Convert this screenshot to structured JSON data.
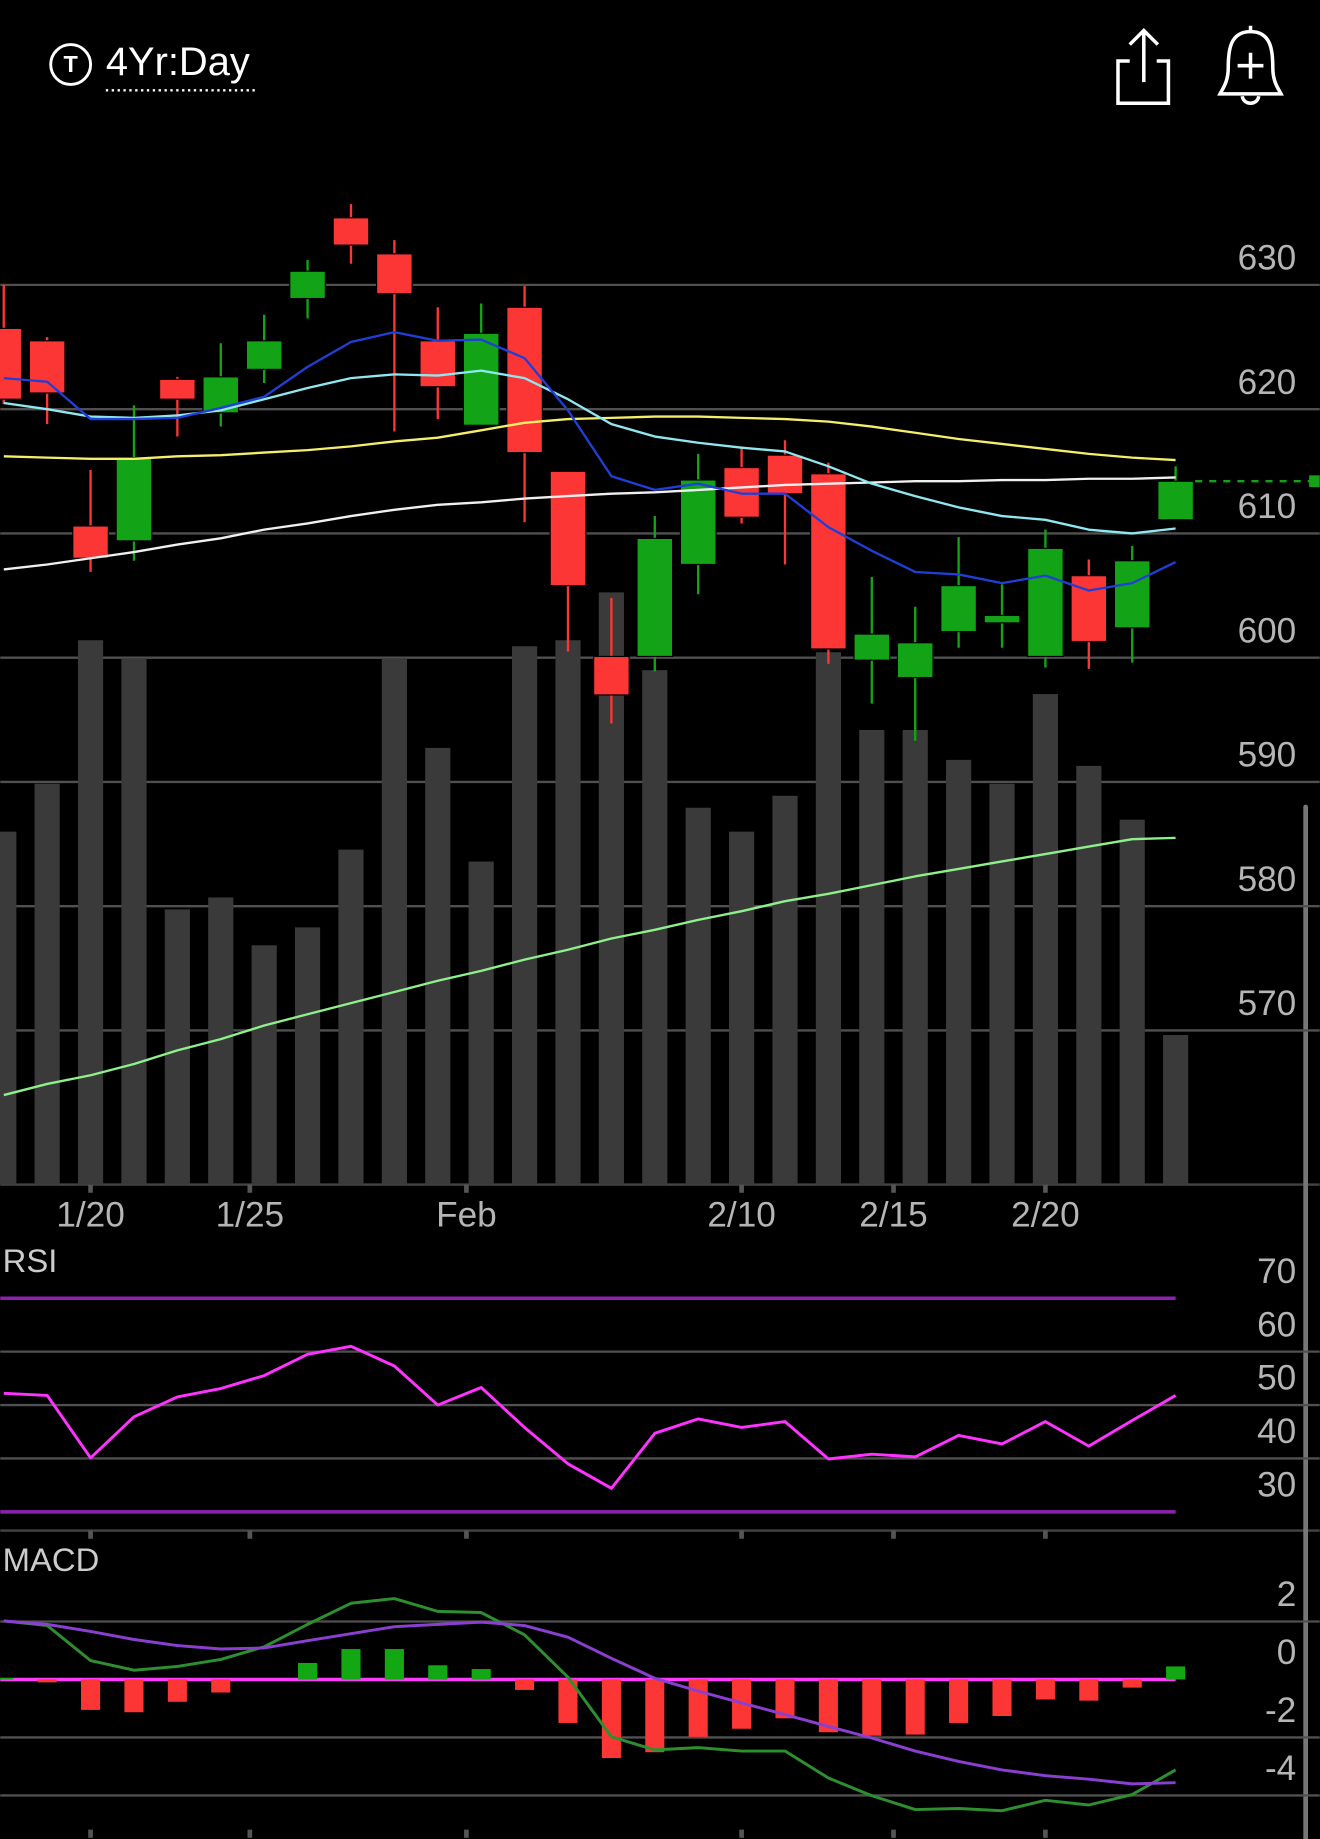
{
  "header": {
    "icon": "T",
    "title": "4Yr:Day"
  },
  "chart_data": [
    {
      "type": "candlestick",
      "categories": [
        null,
        null,
        null,
        null,
        null,
        null,
        null,
        null,
        null,
        null,
        null,
        null,
        null,
        null,
        null,
        null,
        null,
        null,
        null,
        null,
        null,
        null,
        null,
        null,
        null,
        null,
        null,
        null
      ],
      "open": [
        626.5,
        625.5,
        610.6,
        609.4,
        622.4,
        619.7,
        623.2,
        628.9,
        635.4,
        632.5,
        625.5,
        618.7,
        628.2,
        615.0,
        600.1,
        600.1,
        607.5,
        615.3,
        616.3,
        614.8,
        599.8,
        598.4,
        602.1,
        602.8,
        600.1,
        606.6,
        602.4,
        611.1
      ],
      "high": [
        630.0,
        625.8,
        615.1,
        620.3,
        622.6,
        625.3,
        627.6,
        632.0,
        636.5,
        633.6,
        628.2,
        628.5,
        629.9,
        615.0,
        604.8,
        611.4,
        616.4,
        617.0,
        617.5,
        615.7,
        606.5,
        604.1,
        609.7,
        605.9,
        610.3,
        607.9,
        609.0,
        615.4
      ],
      "low": [
        620.4,
        618.8,
        606.9,
        607.8,
        617.8,
        618.6,
        622.1,
        627.3,
        631.7,
        618.2,
        619.2,
        618.7,
        610.9,
        600.5,
        594.7,
        598.9,
        605.1,
        610.8,
        607.5,
        599.5,
        596.3,
        593.3,
        600.8,
        600.8,
        599.2,
        599.1,
        599.6,
        611.1
      ],
      "close": [
        620.8,
        621.3,
        608.0,
        616.1,
        620.8,
        622.6,
        625.5,
        631.1,
        633.2,
        629.3,
        621.8,
        626.1,
        616.5,
        605.8,
        597.0,
        609.6,
        614.3,
        611.3,
        613.2,
        600.7,
        601.9,
        601.2,
        605.8,
        603.4,
        608.8,
        601.3,
        607.8,
        614.2
      ],
      "up_color": "#12a316",
      "down_color": "#fc3535",
      "volume": {
        "values": [
          59,
          67,
          91,
          88,
          46,
          48,
          40,
          43,
          56,
          88,
          73,
          54,
          90,
          91,
          99,
          86,
          63,
          59,
          65,
          89,
          76,
          76,
          71,
          67,
          82,
          70,
          61,
          25
        ],
        "ylim": [
          0,
          100
        ],
        "color": "#3a3a3a"
      },
      "series": [
        {
          "color": "#8ef08a",
          "values": [
            564.8,
            565.7,
            566.4,
            567.3,
            568.4,
            569.3,
            570.4,
            571.3,
            572.2,
            573.1,
            574.0,
            574.8,
            575.7,
            576.5,
            577.4,
            578.1,
            578.9,
            579.6,
            580.4,
            581.0,
            581.7,
            582.4,
            583.0,
            583.6,
            584.2,
            584.8,
            585.4,
            585.5
          ]
        },
        {
          "color": "#f0f0f0",
          "values": [
            607.1,
            607.5,
            608.0,
            608.5,
            609.1,
            609.6,
            610.3,
            610.8,
            611.4,
            611.9,
            612.3,
            612.5,
            612.8,
            613.0,
            613.2,
            613.3,
            613.5,
            613.7,
            613.9,
            614.0,
            614.1,
            614.2,
            614.2,
            614.3,
            614.3,
            614.4,
            614.4,
            614.5
          ]
        },
        {
          "color": "#f5ee6a",
          "values": [
            616.2,
            616.1,
            616.0,
            616.0,
            616.2,
            616.3,
            616.5,
            616.7,
            617.0,
            617.4,
            617.7,
            618.3,
            618.9,
            619.2,
            619.3,
            619.4,
            619.4,
            619.3,
            619.2,
            619.0,
            618.6,
            618.1,
            617.6,
            617.2,
            616.8,
            616.4,
            616.1,
            615.9
          ]
        },
        {
          "color": "#8fe8f0",
          "values": [
            620.5,
            620.0,
            619.4,
            619.3,
            619.5,
            619.9,
            620.8,
            621.7,
            622.5,
            622.8,
            622.7,
            623.1,
            622.5,
            620.8,
            618.8,
            617.8,
            617.3,
            616.9,
            616.6,
            615.4,
            614.0,
            613.0,
            612.1,
            611.4,
            611.1,
            610.3,
            610.0,
            610.4
          ]
        },
        {
          "color": "#1f3fd6",
          "values": [
            622.5,
            622.2,
            619.2,
            619.2,
            619.3,
            620.1,
            621.0,
            623.4,
            625.4,
            626.2,
            625.5,
            625.6,
            624.1,
            619.9,
            614.6,
            613.5,
            614.0,
            613.2,
            613.2,
            610.5,
            608.6,
            606.9,
            606.7,
            606.0,
            606.6,
            605.4,
            606.0,
            607.7
          ]
        }
      ],
      "last_line_color": "#12a316",
      "xlim": [
        -0.08,
        30.32
      ],
      "xticks": [
        {
          "value": 2,
          "label": "1/20"
        },
        {
          "value": 5.67,
          "label": "1/25"
        },
        {
          "value": 10.66,
          "label": "Feb"
        },
        {
          "value": 17,
          "label": "2/10"
        },
        {
          "value": 20.5,
          "label": "2/15"
        },
        {
          "value": 24,
          "label": "2/20"
        }
      ],
      "ylim": [
        557.6,
        641.6
      ],
      "yticks": [
        570,
        580,
        590,
        600,
        610,
        620,
        630
      ],
      "grid": true
    },
    {
      "type": "line",
      "title": "RSI",
      "series": [
        {
          "color": "#ff33ff",
          "values": [
            52.2,
            51.8,
            40.1,
            47.8,
            51.5,
            53.1,
            55.5,
            59.5,
            61.0,
            57.3,
            50.0,
            53.3,
            45.8,
            39.0,
            34.4,
            44.7,
            47.4,
            45.8,
            46.9,
            39.9,
            40.8,
            40.3,
            44.3,
            42.7,
            46.9,
            42.3,
            47.1,
            51.8
          ]
        }
      ],
      "ylim": [
        26.5,
        79.2
      ],
      "yticks": [
        30,
        40,
        50,
        60,
        70
      ],
      "levels": [
        30,
        70
      ],
      "level_color": "#8b22b0",
      "grid": true
    },
    {
      "type": "macd",
      "title": "MACD",
      "series": [
        {
          "color": "#2e8f2e",
          "values": [
            2.02,
            1.86,
            0.65,
            0.32,
            0.45,
            0.69,
            1.13,
            1.9,
            2.63,
            2.79,
            2.35,
            2.31,
            1.54,
            0.08,
            -1.98,
            -2.43,
            -2.35,
            -2.47,
            -2.47,
            -3.4,
            -4.01,
            -4.49,
            -4.45,
            -4.53,
            -4.17,
            -4.33,
            -3.97,
            -3.12
          ]
        },
        {
          "color": "#8a3fd1",
          "values": [
            2.02,
            1.9,
            1.66,
            1.38,
            1.17,
            1.05,
            1.09,
            1.34,
            1.58,
            1.82,
            1.9,
            1.98,
            1.86,
            1.46,
            0.73,
            0.04,
            -0.4,
            -0.81,
            -1.21,
            -1.62,
            -2.02,
            -2.47,
            -2.83,
            -3.12,
            -3.32,
            -3.44,
            -3.6,
            -3.56
          ]
        }
      ],
      "histogram": {
        "values": [
          0.05,
          -0.1,
          -1.05,
          -1.13,
          -0.77,
          -0.45,
          0.0,
          0.57,
          1.05,
          1.05,
          0.49,
          0.36,
          -0.36,
          -1.5,
          -2.71,
          -2.51,
          -1.98,
          -1.7,
          -1.34,
          -1.82,
          -1.94,
          -1.9,
          -1.5,
          -1.26,
          -0.69,
          -0.73,
          -0.28,
          0.45
        ],
        "up_color": "#13a813",
        "down_color": "#fc3535"
      },
      "ylim": [
        -5.18,
        3.52
      ],
      "yticks": [
        -4,
        -2,
        0,
        2
      ],
      "zero_line_color": "#ff3bff",
      "grid": true
    }
  ]
}
